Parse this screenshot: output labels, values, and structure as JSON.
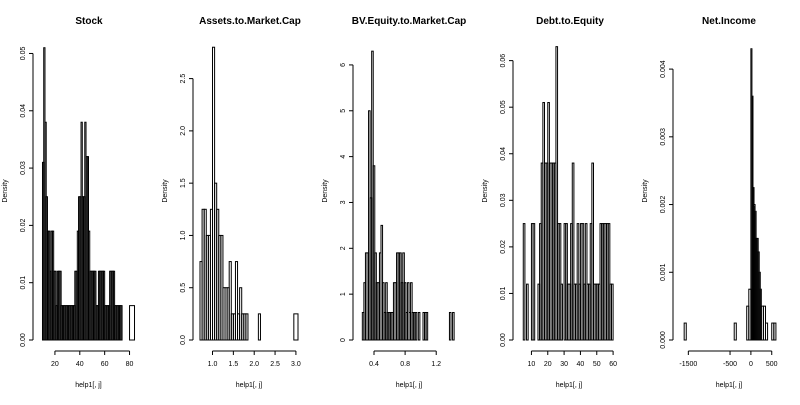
{
  "figure": {
    "background": "#ffffff",
    "ink": "#000000"
  },
  "chart_data": [
    {
      "type": "bar",
      "title": "Stock",
      "xlabel": "help1[, j]",
      "ylabel": "Density",
      "xlim": [
        8,
        86
      ],
      "ylim": [
        0,
        0.052
      ],
      "xticks": [
        20,
        40,
        60,
        80
      ],
      "yticks": [
        0.0,
        0.01,
        0.02,
        0.03,
        0.04,
        0.05
      ],
      "ytick_labels": [
        "0.00",
        "0.01",
        "0.02",
        "0.03",
        "0.04",
        "0.05"
      ],
      "bins": [
        [
          10,
          11,
          0.031
        ],
        [
          11,
          12,
          0.051
        ],
        [
          12,
          13,
          0.038
        ],
        [
          13,
          14,
          0.025
        ],
        [
          14,
          15,
          0.019
        ],
        [
          15,
          16,
          0.019
        ],
        [
          16,
          17,
          0.012
        ],
        [
          17,
          18,
          0.019
        ],
        [
          18,
          19,
          0.019
        ],
        [
          19,
          20,
          0.012
        ],
        [
          20,
          21,
          0.012
        ],
        [
          21,
          22,
          0.006
        ],
        [
          22,
          23,
          0.012
        ],
        [
          23,
          24,
          0.012
        ],
        [
          24,
          25,
          0.012
        ],
        [
          25,
          26,
          0.006
        ],
        [
          26,
          27,
          0.006
        ],
        [
          27,
          28,
          0.006
        ],
        [
          28,
          29,
          0.006
        ],
        [
          29,
          30,
          0.006
        ],
        [
          30,
          31,
          0.006
        ],
        [
          31,
          32,
          0.006
        ],
        [
          32,
          33,
          0.006
        ],
        [
          33,
          34,
          0.006
        ],
        [
          34,
          35,
          0.006
        ],
        [
          35,
          36,
          0.006
        ],
        [
          36,
          37,
          0.012
        ],
        [
          37,
          38,
          0.012
        ],
        [
          38,
          39,
          0.019
        ],
        [
          39,
          40,
          0.025
        ],
        [
          40,
          41,
          0.025
        ],
        [
          41,
          42,
          0.038
        ],
        [
          42,
          43,
          0.025
        ],
        [
          43,
          44,
          0.025
        ],
        [
          44,
          45,
          0.038
        ],
        [
          45,
          46,
          0.032
        ],
        [
          46,
          47,
          0.032
        ],
        [
          47,
          48,
          0.019
        ],
        [
          48,
          49,
          0.012
        ],
        [
          49,
          50,
          0.012
        ],
        [
          50,
          51,
          0.012
        ],
        [
          51,
          52,
          0.012
        ],
        [
          52,
          53,
          0.012
        ],
        [
          53,
          54,
          0.006
        ],
        [
          54,
          55,
          0.006
        ],
        [
          55,
          56,
          0.012
        ],
        [
          56,
          57,
          0.012
        ],
        [
          57,
          58,
          0.012
        ],
        [
          58,
          59,
          0.012
        ],
        [
          59,
          60,
          0.012
        ],
        [
          60,
          61,
          0.006
        ],
        [
          61,
          62,
          0.006
        ],
        [
          62,
          63,
          0.006
        ],
        [
          63,
          64,
          0.006
        ],
        [
          64,
          65,
          0.012
        ],
        [
          65,
          66,
          0.012
        ],
        [
          66,
          67,
          0.012
        ],
        [
          67,
          68,
          0.012
        ],
        [
          68,
          69,
          0.006
        ],
        [
          69,
          70,
          0.006
        ],
        [
          70,
          71,
          0.006
        ],
        [
          71,
          72,
          0.006
        ],
        [
          72,
          73,
          0.006
        ],
        [
          73,
          74,
          0.006
        ],
        [
          80,
          84,
          0.006
        ]
      ]
    },
    {
      "type": "bar",
      "title": "Assets.to.Market.Cap",
      "xlabel": "help1[, j]",
      "ylabel": "Density",
      "xlim": [
        0.7,
        3.05
      ],
      "ylim": [
        0,
        2.85
      ],
      "xticks": [
        1.0,
        1.5,
        2.0,
        2.5,
        3.0
      ],
      "xtick_labels": [
        "1.0",
        "1.5",
        "2.0",
        "2.5",
        "3.0"
      ],
      "yticks": [
        0.0,
        0.5,
        1.0,
        1.5,
        2.0,
        2.5
      ],
      "ytick_labels": [
        "0.0",
        "0.5",
        "1.0",
        "1.5",
        "2.0",
        "2.5"
      ],
      "bins": [
        [
          0.7,
          0.75,
          0.75
        ],
        [
          0.75,
          0.8,
          1.25
        ],
        [
          0.8,
          0.85,
          1.25
        ],
        [
          0.85,
          0.9,
          1.0
        ],
        [
          0.9,
          0.95,
          1.0
        ],
        [
          0.95,
          1.0,
          1.25
        ],
        [
          1.0,
          1.05,
          2.8
        ],
        [
          1.05,
          1.1,
          1.5
        ],
        [
          1.1,
          1.15,
          1.25
        ],
        [
          1.15,
          1.2,
          1.0
        ],
        [
          1.2,
          1.25,
          1.0
        ],
        [
          1.25,
          1.3,
          0.5
        ],
        [
          1.3,
          1.35,
          0.5
        ],
        [
          1.35,
          1.4,
          0.5
        ],
        [
          1.4,
          1.45,
          0.75
        ],
        [
          1.45,
          1.5,
          0.25
        ],
        [
          1.5,
          1.55,
          0.25
        ],
        [
          1.55,
          1.6,
          0.75
        ],
        [
          1.6,
          1.65,
          0.25
        ],
        [
          1.65,
          1.7,
          0.5
        ],
        [
          1.7,
          1.75,
          0.25
        ],
        [
          1.75,
          1.8,
          0.25
        ],
        [
          1.8,
          1.85,
          0.25
        ],
        [
          2.1,
          2.15,
          0.25
        ],
        [
          2.95,
          3.05,
          0.25
        ]
      ]
    },
    {
      "type": "bar",
      "title": "BV.Equity.to.Market.Cap",
      "xlabel": "help1[, j]",
      "ylabel": "Density",
      "xlim": [
        0.22,
        1.48
      ],
      "ylim": [
        0,
        6.5
      ],
      "xticks": [
        0.4,
        0.8,
        1.2
      ],
      "xtick_labels": [
        "0.4",
        "0.8",
        "1.2"
      ],
      "yticks": [
        0,
        1,
        2,
        3,
        4,
        5,
        6
      ],
      "ytick_labels": [
        "0",
        "1",
        "2",
        "3",
        "4",
        "5",
        "6"
      ],
      "bins": [
        [
          0.25,
          0.27,
          0.6
        ],
        [
          0.27,
          0.29,
          1.25
        ],
        [
          0.29,
          0.31,
          1.9
        ],
        [
          0.31,
          0.33,
          1.9
        ],
        [
          0.33,
          0.35,
          5.0
        ],
        [
          0.35,
          0.37,
          3.1
        ],
        [
          0.37,
          0.39,
          6.3
        ],
        [
          0.39,
          0.41,
          3.8
        ],
        [
          0.41,
          0.43,
          1.9
        ],
        [
          0.43,
          0.45,
          1.25
        ],
        [
          0.45,
          0.47,
          1.25
        ],
        [
          0.47,
          0.49,
          1.9
        ],
        [
          0.49,
          0.51,
          2.5
        ],
        [
          0.51,
          0.53,
          1.25
        ],
        [
          0.53,
          0.55,
          0.6
        ],
        [
          0.55,
          0.57,
          1.25
        ],
        [
          0.57,
          0.59,
          0.6
        ],
        [
          0.59,
          0.61,
          0.6
        ],
        [
          0.61,
          0.63,
          0.6
        ],
        [
          0.63,
          0.65,
          0.6
        ],
        [
          0.65,
          0.67,
          1.25
        ],
        [
          0.67,
          0.69,
          1.25
        ],
        [
          0.69,
          0.71,
          1.9
        ],
        [
          0.71,
          0.73,
          1.9
        ],
        [
          0.73,
          0.75,
          1.9
        ],
        [
          0.75,
          0.77,
          1.25
        ],
        [
          0.77,
          0.79,
          1.9
        ],
        [
          0.79,
          0.81,
          1.25
        ],
        [
          0.81,
          0.83,
          0.6
        ],
        [
          0.83,
          0.85,
          1.25
        ],
        [
          0.85,
          0.87,
          0.6
        ],
        [
          0.87,
          0.89,
          1.25
        ],
        [
          0.89,
          0.91,
          0.6
        ],
        [
          0.91,
          0.93,
          0.6
        ],
        [
          0.93,
          0.95,
          0.6
        ],
        [
          0.97,
          0.99,
          0.6
        ],
        [
          1.03,
          1.05,
          0.6
        ],
        [
          1.05,
          1.07,
          0.6
        ],
        [
          1.07,
          1.09,
          0.6
        ],
        [
          1.37,
          1.39,
          0.6
        ],
        [
          1.41,
          1.43,
          0.6
        ]
      ]
    },
    {
      "type": "bar",
      "title": "Debt.to.Equity",
      "xlabel": "help1[, j]",
      "ylabel": "Density",
      "xlim": [
        3,
        63
      ],
      "ylim": [
        0,
        0.064
      ],
      "xticks": [
        10,
        20,
        30,
        40,
        50,
        60
      ],
      "yticks": [
        0.0,
        0.01,
        0.02,
        0.03,
        0.04,
        0.05,
        0.06
      ],
      "ytick_labels": [
        "0.00",
        "0.01",
        "0.02",
        "0.03",
        "0.04",
        "0.05",
        "0.06"
      ],
      "bins": [
        [
          5,
          6,
          0.025
        ],
        [
          7,
          8,
          0.012
        ],
        [
          10,
          11,
          0.025
        ],
        [
          11,
          12,
          0.025
        ],
        [
          14,
          15,
          0.012
        ],
        [
          15,
          16,
          0.025
        ],
        [
          16,
          17,
          0.038
        ],
        [
          17,
          18,
          0.051
        ],
        [
          18,
          19,
          0.038
        ],
        [
          19,
          20,
          0.038
        ],
        [
          20,
          21,
          0.051
        ],
        [
          21,
          22,
          0.038
        ],
        [
          22,
          23,
          0.038
        ],
        [
          23,
          24,
          0.038
        ],
        [
          24,
          25,
          0.038
        ],
        [
          25,
          26,
          0.063
        ],
        [
          26,
          27,
          0.025
        ],
        [
          27,
          28,
          0.025
        ],
        [
          28,
          29,
          0.012
        ],
        [
          30,
          31,
          0.025
        ],
        [
          31,
          32,
          0.025
        ],
        [
          32,
          33,
          0.012
        ],
        [
          33,
          34,
          0.012
        ],
        [
          34,
          35,
          0.025
        ],
        [
          35,
          36,
          0.038
        ],
        [
          36,
          37,
          0.012
        ],
        [
          37,
          38,
          0.012
        ],
        [
          38,
          39,
          0.025
        ],
        [
          39,
          40,
          0.012
        ],
        [
          40,
          41,
          0.025
        ],
        [
          41,
          42,
          0.025
        ],
        [
          42,
          43,
          0.012
        ],
        [
          43,
          44,
          0.025
        ],
        [
          44,
          45,
          0.012
        ],
        [
          45,
          46,
          0.012
        ],
        [
          46,
          47,
          0.025
        ],
        [
          47,
          48,
          0.038
        ],
        [
          48,
          49,
          0.012
        ],
        [
          49,
          50,
          0.012
        ],
        [
          50,
          51,
          0.012
        ],
        [
          51,
          52,
          0.012
        ],
        [
          52,
          53,
          0.025
        ],
        [
          53,
          54,
          0.025
        ],
        [
          54,
          55,
          0.025
        ],
        [
          55,
          56,
          0.025
        ],
        [
          56,
          57,
          0.025
        ],
        [
          57,
          58,
          0.025
        ],
        [
          58,
          59,
          0.012
        ],
        [
          59,
          60,
          0.012
        ]
      ]
    },
    {
      "type": "bar",
      "title": "Net.Income",
      "xlabel": "help1[, j]",
      "ylabel": "Density",
      "xlim": [
        -1700,
        650
      ],
      "ylim": [
        0,
        0.0044
      ],
      "xticks": [
        -1500,
        -500,
        0,
        500
      ],
      "yticks": [
        0.0,
        0.001,
        0.002,
        0.003,
        0.004
      ],
      "ytick_labels": [
        "0.000",
        "0.001",
        "0.002",
        "0.003",
        "0.004"
      ],
      "bins": [
        [
          -1600,
          -1550,
          0.00025
        ],
        [
          -400,
          -350,
          0.00025
        ],
        [
          -100,
          -50,
          0.0005
        ],
        [
          -50,
          0,
          0.00075
        ],
        [
          0,
          25,
          0.0043
        ],
        [
          25,
          50,
          0.0036
        ],
        [
          50,
          75,
          0.00225
        ],
        [
          75,
          100,
          0.002
        ],
        [
          100,
          125,
          0.0019
        ],
        [
          125,
          150,
          0.0015
        ],
        [
          150,
          175,
          0.0015
        ],
        [
          175,
          200,
          0.0013
        ],
        [
          200,
          225,
          0.001
        ],
        [
          225,
          250,
          0.00075
        ],
        [
          250,
          300,
          0.0005
        ],
        [
          300,
          350,
          0.0005
        ],
        [
          350,
          400,
          0.00025
        ],
        [
          500,
          550,
          0.00025
        ],
        [
          550,
          600,
          0.00025
        ]
      ]
    }
  ]
}
